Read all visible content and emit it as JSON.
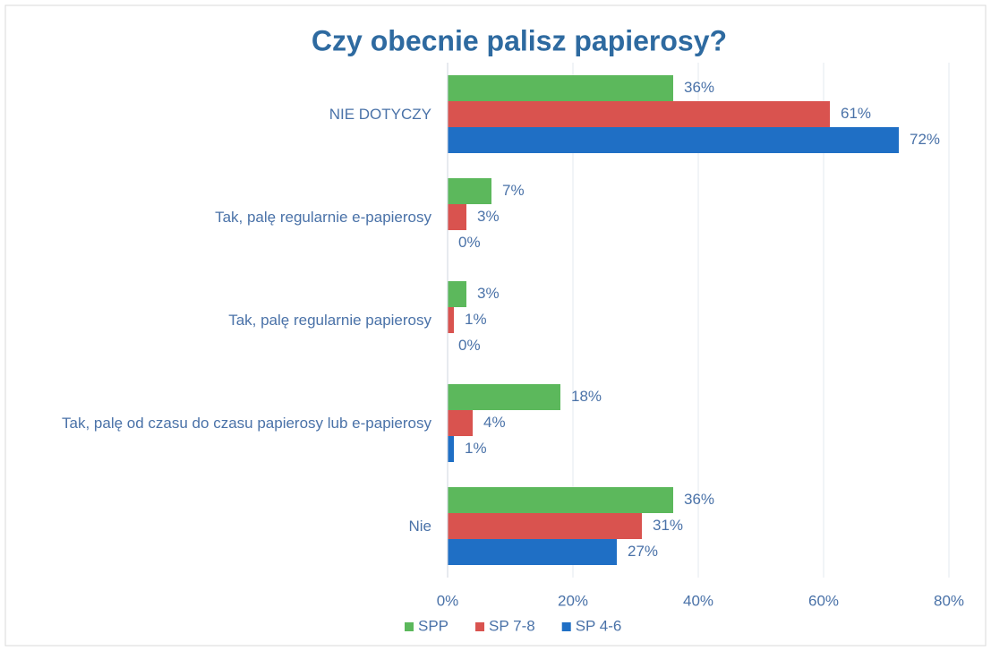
{
  "chart_data": {
    "type": "barh",
    "title": "Czy obecnie palisz papierosy?",
    "categories": [
      "NIE DOTYCZY",
      "Tak, palę regularnie e-papierosy",
      "Tak, palę regularnie papierosy",
      "Tak, palę od czasu do czasu papierosy lub e-papierosy",
      "Nie"
    ],
    "series": [
      {
        "name": "SPP",
        "color": "#5cb85c",
        "values": [
          36,
          7,
          3,
          18,
          36
        ],
        "value_labels": [
          "36%",
          "7%",
          "3%",
          "18%",
          "36%"
        ]
      },
      {
        "name": "SP 7-8",
        "color": "#d9534f",
        "values": [
          61,
          3,
          1,
          4,
          31
        ],
        "value_labels": [
          "61%",
          "3%",
          "1%",
          "4%",
          "31%"
        ]
      },
      {
        "name": "SP 4-6",
        "color": "#1f6fc5",
        "values": [
          72,
          0,
          0,
          1,
          27
        ],
        "value_labels": [
          "72%",
          "0%",
          "0%",
          "1%",
          "27%"
        ]
      }
    ],
    "xlim": [
      0,
      80
    ],
    "xticks": [
      {
        "value": 0,
        "label": "0%"
      },
      {
        "value": 20,
        "label": "20%"
      },
      {
        "value": 40,
        "label": "40%"
      },
      {
        "value": 60,
        "label": "60%"
      },
      {
        "value": 80,
        "label": "80%"
      }
    ],
    "grid": true,
    "legend": "bottom"
  }
}
